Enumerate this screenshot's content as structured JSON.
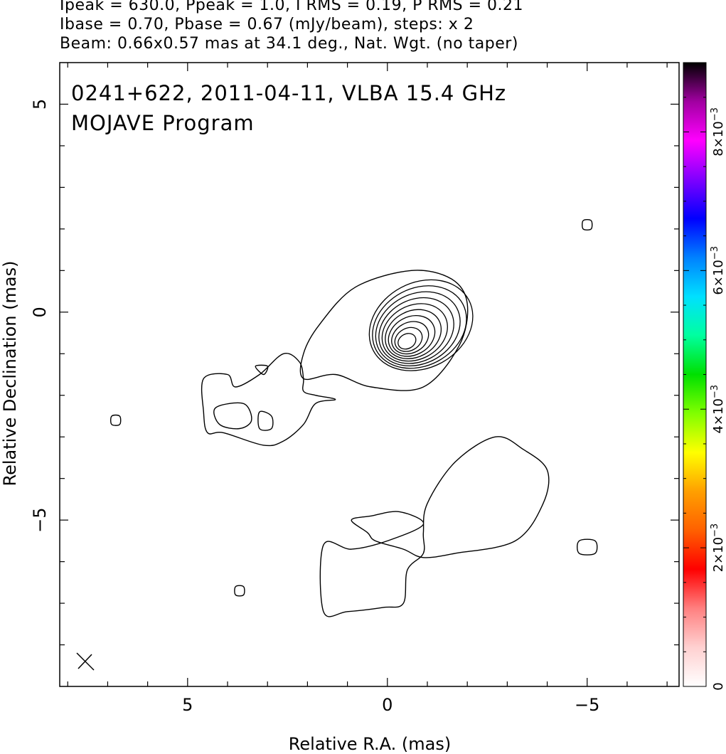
{
  "header": {
    "line1": "Ipeak = 630.0, Ppeak = 1.0, I RMS = 0.19, P RMS = 0.21",
    "line2": "Ibase = 0.70, Pbase = 0.67 (mJy/beam), steps: x 2",
    "line3": "Beam: 0.66x0.57 mas at 34.1 deg., Nat. Wgt. (no taper)"
  },
  "chart_data": {
    "type": "contour",
    "title": "0241+622, 2011-04-11, VLBA 15.4 GHz",
    "subtitle": "MOJAVE Program",
    "xlabel": "Relative R.A. (mas)",
    "ylabel": "Relative Declination (mas)",
    "xlim": [
      8.2,
      -7.3
    ],
    "ylim": [
      -9.0,
      6.0
    ],
    "x_ticks": [
      5,
      0,
      -5
    ],
    "x_tick_labels": [
      "5",
      "0",
      "−5"
    ],
    "y_ticks": [
      5,
      0,
      -5
    ],
    "y_tick_labels": [
      "5",
      "0",
      "−5"
    ],
    "core": {
      "x": -0.7,
      "y": -0.35,
      "levels": 10
    },
    "contours": [
      {
        "name": "core-outer",
        "points": [
          [
            2.1,
            -1.6
          ],
          [
            2.1,
            -1.0
          ],
          [
            1.7,
            -0.3
          ],
          [
            0.8,
            0.6
          ],
          [
            -0.6,
            1.0
          ],
          [
            -1.6,
            0.8
          ],
          [
            -2.0,
            0.2
          ],
          [
            -1.8,
            -0.8
          ],
          [
            -0.9,
            -1.8
          ],
          [
            0.4,
            -1.8
          ],
          [
            1.3,
            -1.5
          ]
        ]
      },
      {
        "name": "jet-nw",
        "points": [
          [
            4.6,
            -1.6
          ],
          [
            4.0,
            -1.5
          ],
          [
            3.8,
            -1.8
          ],
          [
            3.2,
            -1.5
          ],
          [
            2.6,
            -1.0
          ],
          [
            2.2,
            -1.2
          ],
          [
            2.1,
            -1.6
          ],
          [
            2.1,
            -1.9
          ],
          [
            1.8,
            -2.0
          ],
          [
            1.3,
            -2.1
          ],
          [
            1.8,
            -2.2
          ],
          [
            2.1,
            -2.7
          ],
          [
            2.6,
            -3.1
          ],
          [
            3.1,
            -3.2
          ],
          [
            4.1,
            -2.9
          ],
          [
            4.5,
            -2.9
          ],
          [
            4.6,
            -2.4
          ]
        ]
      },
      {
        "name": "jet-knot-1",
        "points": [
          [
            4.3,
            -2.3
          ],
          [
            3.6,
            -2.2
          ],
          [
            3.4,
            -2.6
          ],
          [
            3.7,
            -2.8
          ],
          [
            4.2,
            -2.7
          ]
        ]
      },
      {
        "name": "jet-knot-2",
        "points": [
          [
            3.2,
            -2.4
          ],
          [
            2.9,
            -2.5
          ],
          [
            2.9,
            -2.8
          ],
          [
            3.2,
            -2.8
          ]
        ]
      },
      {
        "name": "jet-knot-3",
        "points": [
          [
            3.3,
            -1.3
          ],
          [
            3.0,
            -1.3
          ],
          [
            3.1,
            -1.5
          ]
        ]
      },
      {
        "name": "south-lobe",
        "points": [
          [
            1.6,
            -5.6
          ],
          [
            1.6,
            -7.2
          ],
          [
            1.0,
            -7.2
          ],
          [
            0.1,
            -7.1
          ],
          [
            -0.4,
            -7.0
          ],
          [
            -0.5,
            -6.2
          ],
          [
            -0.9,
            -5.8
          ],
          [
            -0.9,
            -5.3
          ],
          [
            -1.0,
            -4.6
          ],
          [
            -1.7,
            -3.6
          ],
          [
            -2.7,
            -3.0
          ],
          [
            -3.4,
            -3.3
          ],
          [
            -4.0,
            -3.8
          ],
          [
            -3.9,
            -4.6
          ],
          [
            -3.2,
            -5.5
          ],
          [
            -1.7,
            -5.8
          ],
          [
            -0.9,
            -5.9
          ],
          [
            -0.4,
            -5.7
          ],
          [
            0.3,
            -5.5
          ],
          [
            0.5,
            -5.3
          ],
          [
            0.9,
            -5.0
          ],
          [
            0.4,
            -4.9
          ],
          [
            -0.3,
            -4.8
          ],
          [
            -0.9,
            -5.1
          ],
          [
            0.0,
            -5.5
          ],
          [
            0.9,
            -5.7
          ]
        ]
      },
      {
        "name": "blob-left",
        "points": [
          [
            6.9,
            -2.5
          ],
          [
            6.7,
            -2.5
          ],
          [
            6.7,
            -2.7
          ],
          [
            6.9,
            -2.7
          ]
        ]
      },
      {
        "name": "blob-bottom",
        "points": [
          [
            3.8,
            -6.6
          ],
          [
            3.6,
            -6.6
          ],
          [
            3.6,
            -6.8
          ],
          [
            3.8,
            -6.8
          ]
        ]
      },
      {
        "name": "blob-upper-right",
        "points": [
          [
            -4.9,
            2.2
          ],
          [
            -5.1,
            2.2
          ],
          [
            -5.1,
            2.0
          ],
          [
            -4.9,
            2.0
          ]
        ]
      },
      {
        "name": "blob-lower-right",
        "points": [
          [
            -4.8,
            -5.5
          ],
          [
            -5.2,
            -5.5
          ],
          [
            -5.2,
            -5.8
          ],
          [
            -4.8,
            -5.8
          ]
        ]
      }
    ],
    "colorbar": {
      "ticks": [
        0,
        0.002,
        0.004,
        0.006,
        0.008
      ],
      "tick_labels": [
        "0",
        "2×10",
        "4×10",
        "6×10",
        "8×10"
      ],
      "exponent": "−3",
      "range": [
        0,
        0.009
      ],
      "colors": [
        "#ffffff",
        "#ffd0d0",
        "#ff8080",
        "#ff0000",
        "#ff6000",
        "#ffa000",
        "#ffff00",
        "#80ff00",
        "#00e000",
        "#00ffa0",
        "#00e0ff",
        "#0080ff",
        "#0000ff",
        "#8000ff",
        "#ff00ff",
        "#a000a0",
        "#000000"
      ]
    },
    "beam": {
      "bmaj": 0.66,
      "bmin": 0.57,
      "pa_deg": 34.1
    }
  }
}
